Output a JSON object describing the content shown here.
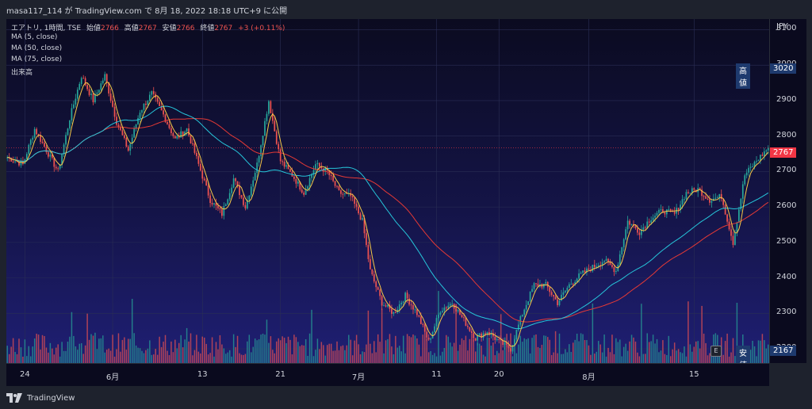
{
  "header": {
    "title": "masa117_114 が TradingView.com で 8月 18, 2022 18:18 UTC+9 に公開"
  },
  "legend": {
    "symbol": "エアトリ, 1時間, TSE",
    "open_label": "始値",
    "open": "2766",
    "high_label": "高値",
    "high": "2767",
    "low_label": "安値",
    "low": "2766",
    "close_label": "終値",
    "close": "2767",
    "change": "+3 (+0.11%)",
    "ma5": "MA (5, close)",
    "ma50": "MA (50, close)",
    "ma75": "MA (75, close)",
    "volume": "出来高"
  },
  "axis": {
    "currency": "JPY",
    "high_label": "高値",
    "high_value": "3020",
    "low_label": "安値",
    "low_value": "2167",
    "last_price": "2767",
    "event_marker": "E"
  },
  "footer": {
    "logo_text": "TradingView"
  },
  "colors": {
    "up": "#26a69a",
    "down": "#ef5350",
    "ma5": "#f7c948",
    "ma50": "#26c6da",
    "ma75": "#e53935",
    "last": "#f23645",
    "label_bg": "#1e3a6e"
  },
  "chart_data": {
    "type": "candlestick",
    "timeframe": "1h",
    "ylim": [
      2160,
      3130
    ],
    "yticks": [
      2200,
      2300,
      2400,
      2500,
      2600,
      2700,
      2800,
      2900,
      3000,
      3100
    ],
    "xticks": [
      "24",
      "6月",
      "13",
      "21",
      "7月",
      "11",
      "20",
      "8月",
      "15"
    ],
    "close_keypoints": [
      [
        0,
        2740
      ],
      [
        8,
        2720
      ],
      [
        14,
        2820
      ],
      [
        20,
        2760
      ],
      [
        26,
        2700
      ],
      [
        32,
        2850
      ],
      [
        38,
        2970
      ],
      [
        44,
        2900
      ],
      [
        50,
        2970
      ],
      [
        56,
        2840
      ],
      [
        62,
        2760
      ],
      [
        68,
        2870
      ],
      [
        74,
        2920
      ],
      [
        80,
        2860
      ],
      [
        86,
        2790
      ],
      [
        92,
        2820
      ],
      [
        98,
        2720
      ],
      [
        104,
        2620
      ],
      [
        110,
        2580
      ],
      [
        116,
        2680
      ],
      [
        122,
        2600
      ],
      [
        128,
        2720
      ],
      [
        134,
        2900
      ],
      [
        140,
        2730
      ],
      [
        146,
        2690
      ],
      [
        152,
        2640
      ],
      [
        158,
        2720
      ],
      [
        164,
        2700
      ],
      [
        170,
        2640
      ],
      [
        176,
        2630
      ],
      [
        182,
        2560
      ],
      [
        186,
        2420
      ],
      [
        192,
        2330
      ],
      [
        198,
        2300
      ],
      [
        204,
        2350
      ],
      [
        210,
        2300
      ],
      [
        216,
        2220
      ],
      [
        222,
        2310
      ],
      [
        228,
        2330
      ],
      [
        234,
        2280
      ],
      [
        240,
        2230
      ],
      [
        246,
        2250
      ],
      [
        252,
        2220
      ],
      [
        258,
        2200
      ],
      [
        264,
        2300
      ],
      [
        270,
        2380
      ],
      [
        276,
        2380
      ],
      [
        282,
        2330
      ],
      [
        288,
        2380
      ],
      [
        294,
        2410
      ],
      [
        300,
        2430
      ],
      [
        306,
        2450
      ],
      [
        312,
        2420
      ],
      [
        318,
        2560
      ],
      [
        324,
        2530
      ],
      [
        330,
        2570
      ],
      [
        336,
        2590
      ],
      [
        342,
        2580
      ],
      [
        348,
        2640
      ],
      [
        354,
        2650
      ],
      [
        360,
        2620
      ],
      [
        366,
        2630
      ],
      [
        372,
        2500
      ],
      [
        378,
        2690
      ],
      [
        384,
        2730
      ],
      [
        390,
        2767
      ]
    ]
  }
}
